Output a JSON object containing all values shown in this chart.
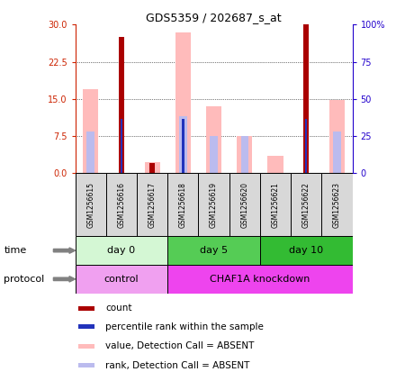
{
  "title": "GDS5359 / 202687_s_at",
  "samples": [
    "GSM1256615",
    "GSM1256616",
    "GSM1256617",
    "GSM1256618",
    "GSM1256619",
    "GSM1256620",
    "GSM1256621",
    "GSM1256622",
    "GSM1256623"
  ],
  "count_values": [
    0,
    27.5,
    2.0,
    0,
    0,
    0,
    0,
    30.0,
    0
  ],
  "percentile_values": [
    0,
    11.0,
    0,
    11.0,
    0,
    0,
    0,
    11.0,
    0
  ],
  "pink_bar_values": [
    17.0,
    0,
    2.2,
    28.5,
    13.5,
    7.5,
    3.5,
    0,
    14.8
  ],
  "light_blue_values": [
    8.5,
    0,
    0,
    11.5,
    7.5,
    7.5,
    0,
    0,
    8.5
  ],
  "ylim_left": [
    0,
    30
  ],
  "ylim_right": [
    0,
    100
  ],
  "left_ticks": [
    0,
    7.5,
    15,
    22.5,
    30
  ],
  "right_ticks": [
    0,
    25,
    50,
    75,
    100
  ],
  "time_groups": [
    {
      "label": "day 0",
      "start": 0,
      "end": 3,
      "color": "#d4f7d4"
    },
    {
      "label": "day 5",
      "start": 3,
      "end": 6,
      "color": "#55cc55"
    },
    {
      "label": "day 10",
      "start": 6,
      "end": 9,
      "color": "#33bb33"
    }
  ],
  "protocol_groups": [
    {
      "label": "control",
      "start": 0,
      "end": 3,
      "color": "#f0a0f0"
    },
    {
      "label": "CHAF1A knockdown",
      "start": 3,
      "end": 9,
      "color": "#ee44ee"
    }
  ],
  "count_color": "#aa0000",
  "percentile_color": "#2233bb",
  "pink_color": "#ffbbbb",
  "light_blue_color": "#bbbbee",
  "legend_items": [
    {
      "color": "#aa0000",
      "label": "count"
    },
    {
      "color": "#2233bb",
      "label": "percentile rank within the sample"
    },
    {
      "color": "#ffbbbb",
      "label": "value, Detection Call = ABSENT"
    },
    {
      "color": "#bbbbee",
      "label": "rank, Detection Call = ABSENT"
    }
  ],
  "left_axis_color": "#cc2200",
  "right_axis_color": "#2200cc",
  "gray_bg": "#d8d8d8",
  "grid_linestyle": "dotted"
}
